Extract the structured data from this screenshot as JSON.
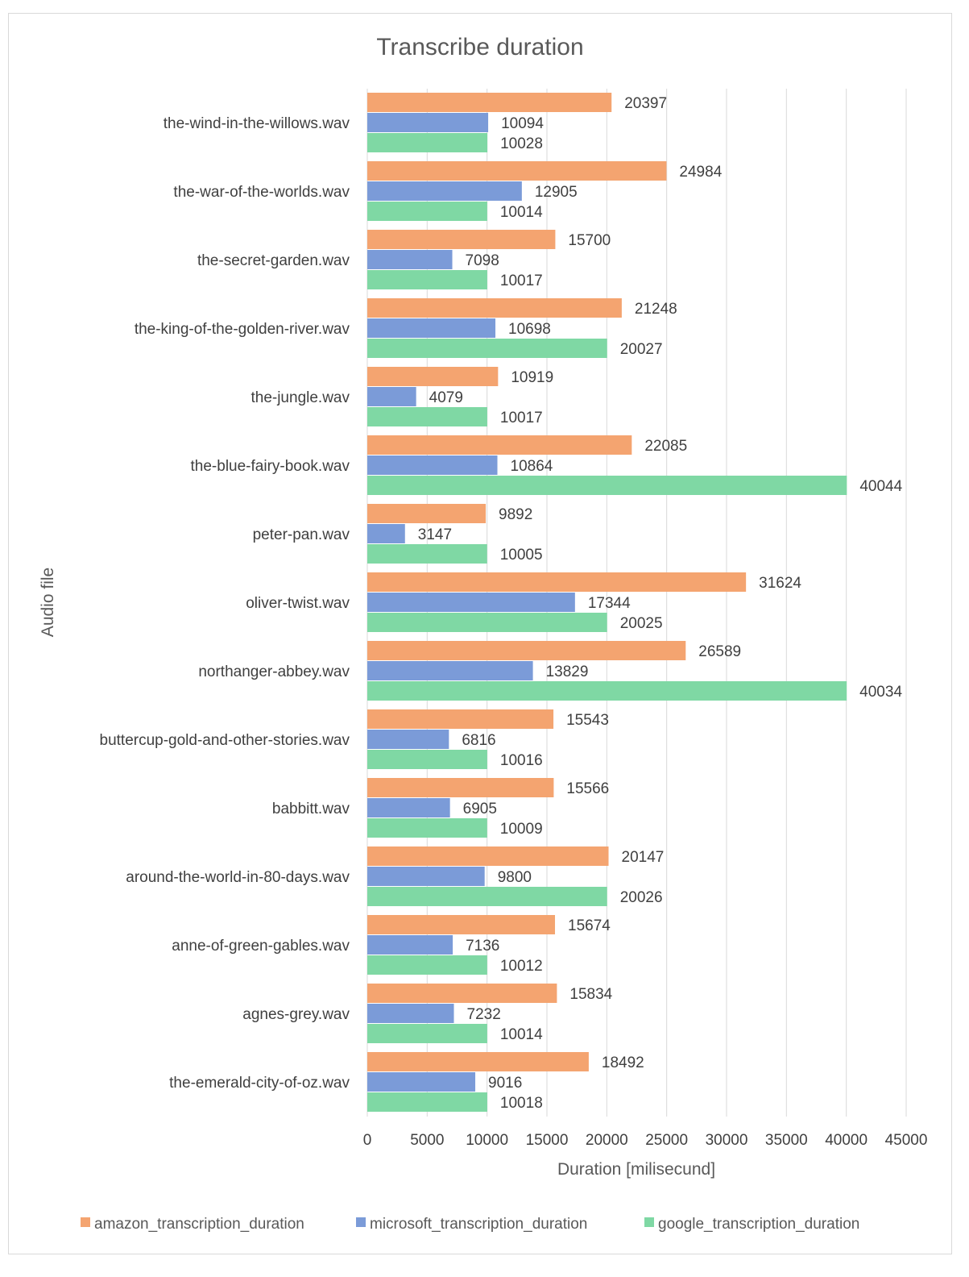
{
  "chart_data": {
    "type": "bar",
    "orientation": "horizontal",
    "title": "Transcribe duration",
    "xlabel": "Duration [milisecund]",
    "ylabel": "Audio file",
    "xlim": [
      0,
      45000
    ],
    "xticks": [
      0,
      5000,
      10000,
      15000,
      20000,
      25000,
      30000,
      35000,
      40000,
      45000
    ],
    "grid": true,
    "legend_position": "bottom",
    "categories": [
      "the-wind-in-the-willows.wav",
      "the-war-of-the-worlds.wav",
      "the-secret-garden.wav",
      "the-king-of-the-golden-river.wav",
      "the-jungle.wav",
      "the-blue-fairy-book.wav",
      "peter-pan.wav",
      "oliver-twist.wav",
      "northanger-abbey.wav",
      "buttercup-gold-and-other-stories.wav",
      "babbitt.wav",
      "around-the-world-in-80-days.wav",
      "anne-of-green-gables.wav",
      "agnes-grey.wav",
      "the-emerald-city-of-oz.wav"
    ],
    "series": [
      {
        "name": "amazon_transcription_duration",
        "color": "#f4a470",
        "values": [
          20397,
          24984,
          15700,
          21248,
          10919,
          22085,
          9892,
          31624,
          26589,
          15543,
          15566,
          20147,
          15674,
          15834,
          18492
        ]
      },
      {
        "name": "microsoft_transcription_duration",
        "color": "#7b9bd8",
        "values": [
          10094,
          12905,
          7098,
          10698,
          4079,
          10864,
          3147,
          17344,
          13829,
          6816,
          6905,
          9800,
          7136,
          7232,
          9016
        ]
      },
      {
        "name": "google_transcription_duration",
        "color": "#7fd8a4",
        "values": [
          10028,
          10014,
          10017,
          20027,
          10017,
          40044,
          10005,
          20025,
          40034,
          10016,
          10009,
          20026,
          10012,
          10014,
          10018
        ]
      }
    ]
  }
}
